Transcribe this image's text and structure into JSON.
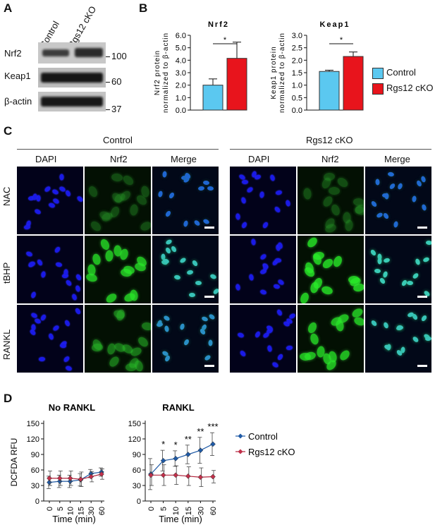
{
  "panels": {
    "a": "A",
    "b": "B",
    "c": "C",
    "d": "D"
  },
  "blot": {
    "columns": [
      "Control",
      "Rgs12 cKO"
    ],
    "rows": [
      {
        "protein": "Nrf2",
        "marker": "100"
      },
      {
        "protein": "Keap1",
        "marker": "60"
      },
      {
        "protein": "β-actin",
        "marker": "37"
      }
    ]
  },
  "legend": {
    "control": "Control",
    "cko": "Rgs12 cKO",
    "control_color": "#5bc8f0",
    "cko_color": "#e8141c"
  },
  "panel_c": {
    "groups": [
      "Control",
      "Rgs12 cKO"
    ],
    "channels": [
      "DAPI",
      "Nrf2",
      "Merge",
      "DAPI",
      "Nrf2",
      "Merge"
    ],
    "conditions": [
      "NAC",
      "tBHP",
      "RANKL"
    ]
  },
  "chart_data": [
    {
      "type": "bar",
      "title": "Nrf2",
      "ylabel": "Nrf2 protein normalized to β-actin",
      "categories": [
        "Control",
        "Rgs12 cKO"
      ],
      "values": [
        2.0,
        4.15
      ],
      "errors": [
        0.5,
        1.3
      ],
      "ylim": [
        0,
        6.0
      ],
      "yticks": [
        "0.0",
        "1.0",
        "2.0",
        "3.0",
        "4.0",
        "5.0",
        "6.0"
      ],
      "significance": "*"
    },
    {
      "type": "bar",
      "title": "Keap1",
      "ylabel": "Keap1 protein normalized to β-actin",
      "categories": [
        "Control",
        "Rgs12 cKO"
      ],
      "values": [
        1.55,
        2.15
      ],
      "errors": [
        0.05,
        0.18
      ],
      "ylim": [
        0,
        3.0
      ],
      "yticks": [
        "0.0",
        "0.5",
        "1.0",
        "1.5",
        "2.0",
        "2.5",
        "3.0"
      ],
      "significance": "*"
    },
    {
      "type": "line",
      "title": "No RANKL",
      "xlabel": "Time (min)",
      "ylabel": "DCFDA RFU",
      "x": [
        "0",
        "5",
        "10",
        "15",
        "30",
        "60"
      ],
      "ylim": [
        0,
        150
      ],
      "yticks": [
        "0",
        "30",
        "60",
        "90",
        "120",
        "150"
      ],
      "series": [
        {
          "name": "Control",
          "values": [
            36,
            38,
            38,
            41,
            53,
            56
          ],
          "errors": [
            12,
            12,
            12,
            12,
            8,
            8
          ]
        },
        {
          "name": "Rgs12 cKO",
          "values": [
            44,
            44,
            44,
            42,
            47,
            52
          ],
          "errors": [
            14,
            14,
            14,
            14,
            10,
            10
          ]
        }
      ],
      "significance": []
    },
    {
      "type": "line",
      "title": "RANKL",
      "xlabel": "Time (min)",
      "x": [
        "0",
        "5",
        "10",
        "15",
        "30",
        "60"
      ],
      "ylim": [
        0,
        150
      ],
      "yticks": [
        "0",
        "30",
        "60",
        "90",
        "120",
        "150"
      ],
      "series": [
        {
          "name": "Control",
          "values": [
            52,
            78,
            82,
            90,
            98,
            110
          ],
          "errors": [
            30,
            20,
            15,
            18,
            25,
            22
          ]
        },
        {
          "name": "Rgs12 cKO",
          "values": [
            50,
            50,
            50,
            48,
            46,
            47
          ],
          "errors": [
            20,
            20,
            18,
            18,
            18,
            12
          ]
        }
      ],
      "significance": [
        "",
        "*",
        "*",
        "**",
        "**",
        "***"
      ]
    }
  ]
}
